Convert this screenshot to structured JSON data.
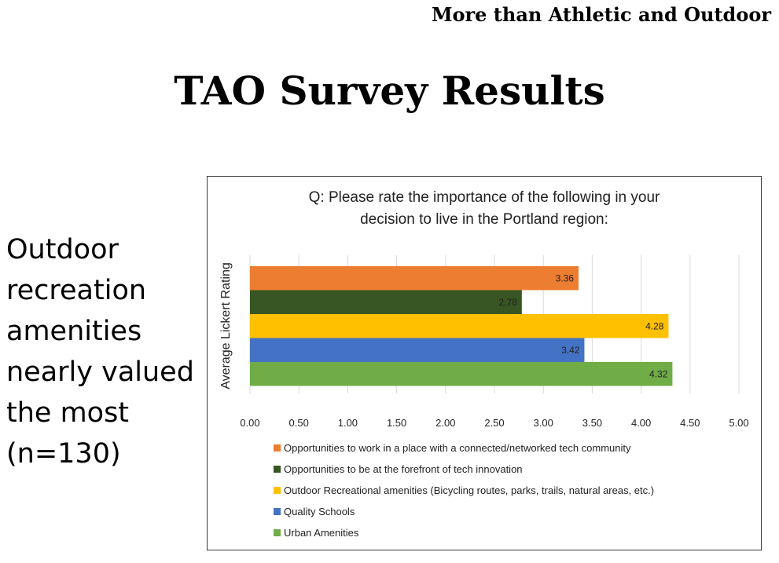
{
  "header": {
    "tagline": "More than Athletic and Outdoor"
  },
  "slide": {
    "title": "TAO Survey Results",
    "side_lines": [
      "Outdoor",
      "recreation",
      "amenities",
      "nearly valued",
      "the most",
      "(n=130)"
    ]
  },
  "chart_data": {
    "type": "bar",
    "orientation": "horizontal",
    "title_lines": [
      "Q: Please rate the importance of the following in your",
      "decision to live in the Portland region:"
    ],
    "ylabel": "Average Lickert Rating",
    "xlim": [
      0,
      5
    ],
    "xticks": [
      "0.00",
      "0.50",
      "1.00",
      "1.50",
      "2.00",
      "2.50",
      "3.00",
      "3.50",
      "4.00",
      "4.50",
      "5.00"
    ],
    "grid": true,
    "legend_position": "bottom",
    "series": [
      {
        "name": "Opportunities to work in a place with a connected/networked tech community",
        "value": 3.36,
        "label": "3.36",
        "color": "#ED7D31"
      },
      {
        "name": "Opportunities to be at the forefront of tech innovation",
        "value": 2.78,
        "label": "2.78",
        "color": "#375623"
      },
      {
        "name": "Outdoor Recreational amenities (Bicycling routes, parks, trails, natural areas, etc.)",
        "value": 4.28,
        "label": "4.28",
        "color": "#FFC000"
      },
      {
        "name": "Quality Schools",
        "value": 3.42,
        "label": "3.42",
        "color": "#4472C4"
      },
      {
        "name": "Urban Amenities",
        "value": 4.32,
        "label": "4.32",
        "color": "#70AD47"
      }
    ]
  }
}
